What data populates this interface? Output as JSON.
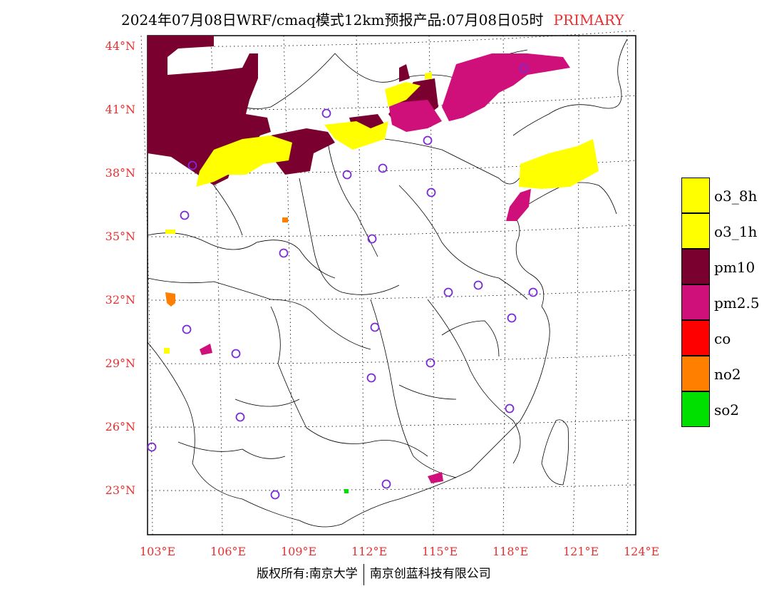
{
  "title": {
    "main": "2024年07月08日WRF/cmaq模式12km预报产品:07月08日05时",
    "tag": "PRIMARY"
  },
  "colors": {
    "o3_8h": "#ffff00",
    "o3_1h": "#ffff00",
    "pm10": "#7a0030",
    "pm25": "#d0107a",
    "co": "#ff0000",
    "no2": "#ff7f00",
    "so2": "#00e000",
    "station": "#7b2bd6",
    "label": "#e83030"
  },
  "axes": {
    "lat_labels": [
      "44°N",
      "41°N",
      "38°N",
      "35°N",
      "32°N",
      "29°N",
      "26°N",
      "23°N"
    ],
    "lon_labels": [
      "103°E",
      "106°E",
      "109°E",
      "112°E",
      "115°E",
      "118°E",
      "121°E",
      "124°E"
    ]
  },
  "legend": [
    {
      "label": "o3_8h",
      "color": "#ffff00"
    },
    {
      "label": "o3_1h",
      "color": "#ffff00"
    },
    {
      "label": "pm10",
      "color": "#7a0030"
    },
    {
      "label": "pm2.5",
      "color": "#d0107a"
    },
    {
      "label": "co",
      "color": "#ff0000"
    },
    {
      "label": "no2",
      "color": "#ff7f00"
    },
    {
      "label": "so2",
      "color": "#00e000"
    }
  ],
  "footer": {
    "left": "版权所有:南京大学",
    "right": "南京创蓝科技有限公司"
  }
}
